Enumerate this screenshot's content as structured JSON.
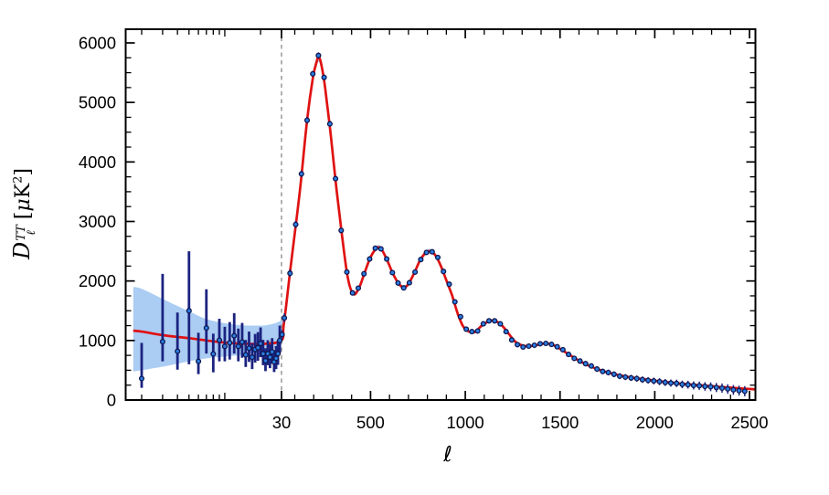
{
  "labels": {
    "y_main": "D",
    "y_sup": "TT",
    "y_sub": "ℓ",
    "u_open": "[",
    "u_mu": "μ",
    "u_k": "K",
    "u_exp": "2",
    "u_close": "]",
    "xlabel": "ℓ"
  },
  "chart_data": {
    "type": "line+scatter",
    "title": "",
    "xlabel": "ℓ",
    "ylabel": "D_ℓ^TT [μK²]",
    "x_scale": {
      "type": "hybrid",
      "log_range": [
        2,
        30
      ],
      "linear_range": [
        30,
        2500
      ],
      "break_at": 30
    },
    "ylim": [
      0,
      6230
    ],
    "grid": "off",
    "legend": "none",
    "yticks": {
      "major": [
        0,
        1000,
        2000,
        3000,
        4000,
        5000,
        6000
      ],
      "labels": [
        "0",
        "1000",
        "2000",
        "3000",
        "4000",
        "5000",
        "6000"
      ],
      "minor_step": 250
    },
    "xticks": {
      "major": [
        30,
        500,
        1000,
        1500,
        2000,
        2500
      ],
      "labels": [
        "30",
        "500",
        "1000",
        "1500",
        "2000",
        "2500"
      ],
      "minor_log": [
        2,
        3,
        4,
        5,
        6,
        7,
        8,
        9,
        10,
        20
      ],
      "minor_linear_step": 100
    },
    "divider_l": 30,
    "colors": {
      "curve": "#e01212",
      "band": "#abccf3",
      "marker_fill": "#2b7de1",
      "marker_edge": "#0e1650",
      "error_bar": "#1b2380",
      "divider": "#909090",
      "axis": "#000000",
      "background": "#ffffff"
    },
    "model_curve": [
      [
        1.7,
        1165
      ],
      [
        2,
        1150
      ],
      [
        3,
        1090
      ],
      [
        4,
        1060
      ],
      [
        5,
        1040
      ],
      [
        7,
        1000
      ],
      [
        10,
        965
      ],
      [
        15,
        945
      ],
      [
        22,
        945
      ],
      [
        30,
        1000
      ],
      [
        40,
        1220
      ],
      [
        55,
        1600
      ],
      [
        75,
        2150
      ],
      [
        100,
        2800
      ],
      [
        130,
        3600
      ],
      [
        165,
        4700
      ],
      [
        195,
        5400
      ],
      [
        210,
        5620
      ],
      [
        225,
        5760
      ],
      [
        240,
        5640
      ],
      [
        260,
        5250
      ],
      [
        290,
        4450
      ],
      [
        320,
        3550
      ],
      [
        350,
        2750
      ],
      [
        380,
        2050
      ],
      [
        410,
        1780
      ],
      [
        440,
        1890
      ],
      [
        470,
        2150
      ],
      [
        500,
        2400
      ],
      [
        535,
        2560
      ],
      [
        560,
        2520
      ],
      [
        590,
        2330
      ],
      [
        620,
        2110
      ],
      [
        650,
        1950
      ],
      [
        675,
        1890
      ],
      [
        700,
        1950
      ],
      [
        730,
        2130
      ],
      [
        760,
        2340
      ],
      [
        790,
        2470
      ],
      [
        815,
        2500
      ],
      [
        840,
        2440
      ],
      [
        870,
        2260
      ],
      [
        900,
        2010
      ],
      [
        930,
        1760
      ],
      [
        960,
        1450
      ],
      [
        990,
        1230
      ],
      [
        1020,
        1150
      ],
      [
        1050,
        1140
      ],
      [
        1080,
        1230
      ],
      [
        1110,
        1300
      ],
      [
        1140,
        1335
      ],
      [
        1170,
        1310
      ],
      [
        1200,
        1230
      ],
      [
        1230,
        1110
      ],
      [
        1260,
        990
      ],
      [
        1290,
        930
      ],
      [
        1320,
        905
      ],
      [
        1350,
        908
      ],
      [
        1380,
        925
      ],
      [
        1420,
        950
      ],
      [
        1460,
        930
      ],
      [
        1500,
        860
      ],
      [
        1550,
        760
      ],
      [
        1600,
        660
      ],
      [
        1650,
        580
      ],
      [
        1700,
        515
      ],
      [
        1750,
        465
      ],
      [
        1800,
        425
      ],
      [
        1850,
        395
      ],
      [
        1900,
        368
      ],
      [
        1950,
        345
      ],
      [
        2000,
        325
      ],
      [
        2050,
        305
      ],
      [
        2100,
        288
      ],
      [
        2150,
        272
      ],
      [
        2200,
        258
      ],
      [
        2250,
        245
      ],
      [
        2300,
        232
      ],
      [
        2350,
        220
      ],
      [
        2400,
        208
      ],
      [
        2450,
        196
      ],
      [
        2500,
        185
      ],
      [
        2533,
        178
      ]
    ],
    "cosmic_variance_band": [
      [
        1.7,
        1900,
        480
      ],
      [
        2,
        1870,
        500
      ],
      [
        3,
        1700,
        560
      ],
      [
        4,
        1580,
        610
      ],
      [
        5,
        1490,
        650
      ],
      [
        7,
        1360,
        700
      ],
      [
        10,
        1290,
        730
      ],
      [
        14,
        1255,
        760
      ],
      [
        18,
        1250,
        790
      ],
      [
        22,
        1255,
        820
      ],
      [
        26,
        1285,
        860
      ],
      [
        30,
        1340,
        930
      ],
      [
        34,
        1380,
        1010
      ],
      [
        40,
        1420,
        1130
      ],
      [
        45,
        1480,
        1290
      ],
      [
        50,
        1560,
        1430
      ],
      [
        55,
        1650,
        1545
      ]
    ],
    "band_high_frac": 0.012,
    "band_high_abs": 8,
    "data_low_l": [
      [
        2,
        360,
        600,
        155
      ],
      [
        3,
        980,
        1140,
        330
      ],
      [
        4,
        820,
        650,
        310
      ],
      [
        5,
        1500,
        1000,
        900
      ],
      [
        6,
        650,
        480,
        215
      ],
      [
        7,
        1210,
        650,
        430
      ],
      [
        8,
        775,
        340,
        310
      ],
      [
        9,
        1005,
        360,
        355
      ],
      [
        10,
        900,
        330,
        250
      ],
      [
        11,
        960,
        350,
        280
      ],
      [
        12,
        1080,
        380,
        300
      ],
      [
        13,
        900,
        300,
        250
      ],
      [
        14,
        975,
        320,
        265
      ],
      [
        15,
        760,
        250,
        205
      ],
      [
        16,
        870,
        280,
        230
      ],
      [
        17,
        720,
        235,
        200
      ],
      [
        18,
        850,
        260,
        220
      ],
      [
        19,
        880,
        260,
        220
      ],
      [
        20,
        950,
        270,
        230
      ],
      [
        21,
        780,
        230,
        195
      ],
      [
        22,
        660,
        210,
        175
      ],
      [
        23,
        780,
        225,
        195
      ],
      [
        24,
        720,
        215,
        185
      ],
      [
        25,
        810,
        230,
        200
      ],
      [
        26,
        640,
        200,
        170
      ],
      [
        27,
        700,
        205,
        180
      ],
      [
        28,
        780,
        220,
        190
      ],
      [
        29,
        1000,
        250,
        210
      ]
    ],
    "data_high_l": [
      [
        33,
        1100,
        80
      ],
      [
        45,
        1380,
        75
      ],
      [
        75,
        2130,
        65
      ],
      [
        105,
        2950,
        60
      ],
      [
        135,
        3800,
        55
      ],
      [
        165,
        4700,
        55
      ],
      [
        195,
        5480,
        50
      ],
      [
        225,
        5790,
        50
      ],
      [
        255,
        5420,
        50
      ],
      [
        285,
        4640,
        50
      ],
      [
        315,
        3720,
        45
      ],
      [
        345,
        2850,
        45
      ],
      [
        375,
        2150,
        40
      ],
      [
        405,
        1800,
        40
      ],
      [
        435,
        1880,
        40
      ],
      [
        465,
        2120,
        40
      ],
      [
        495,
        2370,
        40
      ],
      [
        525,
        2550,
        40
      ],
      [
        555,
        2540,
        40
      ],
      [
        585,
        2370,
        38
      ],
      [
        615,
        2140,
        38
      ],
      [
        645,
        1965,
        38
      ],
      [
        675,
        1885,
        38
      ],
      [
        705,
        1970,
        38
      ],
      [
        735,
        2150,
        38
      ],
      [
        765,
        2360,
        38
      ],
      [
        795,
        2480,
        38
      ],
      [
        825,
        2490,
        38
      ],
      [
        855,
        2395,
        36
      ],
      [
        885,
        2160,
        36
      ],
      [
        915,
        1945,
        36
      ],
      [
        945,
        1650,
        36
      ],
      [
        975,
        1400,
        35
      ],
      [
        1005,
        1190,
        35
      ],
      [
        1035,
        1150,
        35
      ],
      [
        1065,
        1160,
        35
      ],
      [
        1095,
        1280,
        35
      ],
      [
        1125,
        1330,
        35
      ],
      [
        1155,
        1330,
        35
      ],
      [
        1185,
        1280,
        35
      ],
      [
        1215,
        1150,
        35
      ],
      [
        1245,
        1010,
        35
      ],
      [
        1275,
        930,
        35
      ],
      [
        1305,
        890,
        35
      ],
      [
        1335,
        905,
        36
      ],
      [
        1365,
        920,
        36
      ],
      [
        1395,
        945,
        36
      ],
      [
        1425,
        952,
        38
      ],
      [
        1455,
        935,
        38
      ],
      [
        1485,
        895,
        38
      ],
      [
        1515,
        845,
        40
      ],
      [
        1545,
        765,
        40
      ],
      [
        1575,
        700,
        42
      ],
      [
        1605,
        655,
        42
      ],
      [
        1635,
        610,
        44
      ],
      [
        1665,
        572,
        44
      ],
      [
        1695,
        520,
        46
      ],
      [
        1725,
        480,
        46
      ],
      [
        1755,
        462,
        48
      ],
      [
        1785,
        432,
        48
      ],
      [
        1815,
        400,
        50
      ],
      [
        1845,
        385,
        50
      ],
      [
        1875,
        372,
        52
      ],
      [
        1905,
        360,
        52
      ],
      [
        1935,
        342,
        54
      ],
      [
        1965,
        330,
        54
      ],
      [
        1995,
        320,
        56
      ],
      [
        2025,
        308,
        58
      ],
      [
        2055,
        295,
        58
      ],
      [
        2085,
        285,
        60
      ],
      [
        2115,
        280,
        62
      ],
      [
        2145,
        262,
        64
      ],
      [
        2175,
        258,
        66
      ],
      [
        2205,
        245,
        68
      ],
      [
        2235,
        240,
        70
      ],
      [
        2265,
        228,
        72
      ],
      [
        2295,
        222,
        74
      ],
      [
        2325,
        210,
        76
      ],
      [
        2355,
        200,
        78
      ],
      [
        2385,
        185,
        80
      ],
      [
        2415,
        170,
        82
      ],
      [
        2445,
        158,
        84
      ],
      [
        2475,
        148,
        86
      ]
    ]
  }
}
